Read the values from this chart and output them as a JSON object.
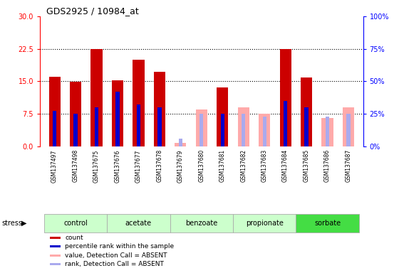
{
  "title": "GDS2925 / 10984_at",
  "samples": [
    "GSM137497",
    "GSM137498",
    "GSM137675",
    "GSM137676",
    "GSM137677",
    "GSM137678",
    "GSM137679",
    "GSM137680",
    "GSM137681",
    "GSM137682",
    "GSM137683",
    "GSM137684",
    "GSM137685",
    "GSM137686",
    "GSM137687"
  ],
  "count_values": [
    16.0,
    14.8,
    22.5,
    15.2,
    20.0,
    17.2,
    null,
    null,
    13.5,
    null,
    null,
    22.5,
    15.8,
    null,
    null
  ],
  "rank_values": [
    27.0,
    25.0,
    30.0,
    42.0,
    32.0,
    30.0,
    null,
    null,
    25.0,
    null,
    null,
    35.0,
    30.0,
    null,
    null
  ],
  "absent_count": [
    null,
    null,
    null,
    null,
    null,
    null,
    0.8,
    8.5,
    null,
    9.0,
    7.5,
    null,
    null,
    6.5,
    9.0
  ],
  "absent_rank": [
    null,
    null,
    null,
    null,
    null,
    null,
    6.0,
    25.0,
    null,
    25.0,
    23.0,
    null,
    null,
    23.0,
    25.0
  ],
  "ylim_left": [
    0,
    30
  ],
  "ylim_right": [
    0,
    100
  ],
  "yticks_left": [
    0,
    7.5,
    15,
    22.5,
    30
  ],
  "yticks_right": [
    0,
    25,
    50,
    75,
    100
  ],
  "bar_color_present": "#cc0000",
  "bar_color_rank": "#0000cc",
  "bar_color_absent_count": "#ffaaaa",
  "bar_color_absent_rank": "#aaaaee",
  "bg_color": "#d8d8d8",
  "groups": [
    {
      "name": "control",
      "start": 0,
      "end": 2,
      "color": "#ccffcc"
    },
    {
      "name": "acetate",
      "start": 3,
      "end": 5,
      "color": "#ccffcc"
    },
    {
      "name": "benzoate",
      "start": 6,
      "end": 8,
      "color": "#ccffcc"
    },
    {
      "name": "propionate",
      "start": 9,
      "end": 11,
      "color": "#ccffcc"
    },
    {
      "name": "sorbate",
      "start": 12,
      "end": 14,
      "color": "#44dd44"
    }
  ],
  "legend_items": [
    {
      "label": "count",
      "color": "#cc0000"
    },
    {
      "label": "percentile rank within the sample",
      "color": "#0000cc"
    },
    {
      "label": "value, Detection Call = ABSENT",
      "color": "#ffaaaa"
    },
    {
      "label": "rank, Detection Call = ABSENT",
      "color": "#aaaaee"
    }
  ]
}
